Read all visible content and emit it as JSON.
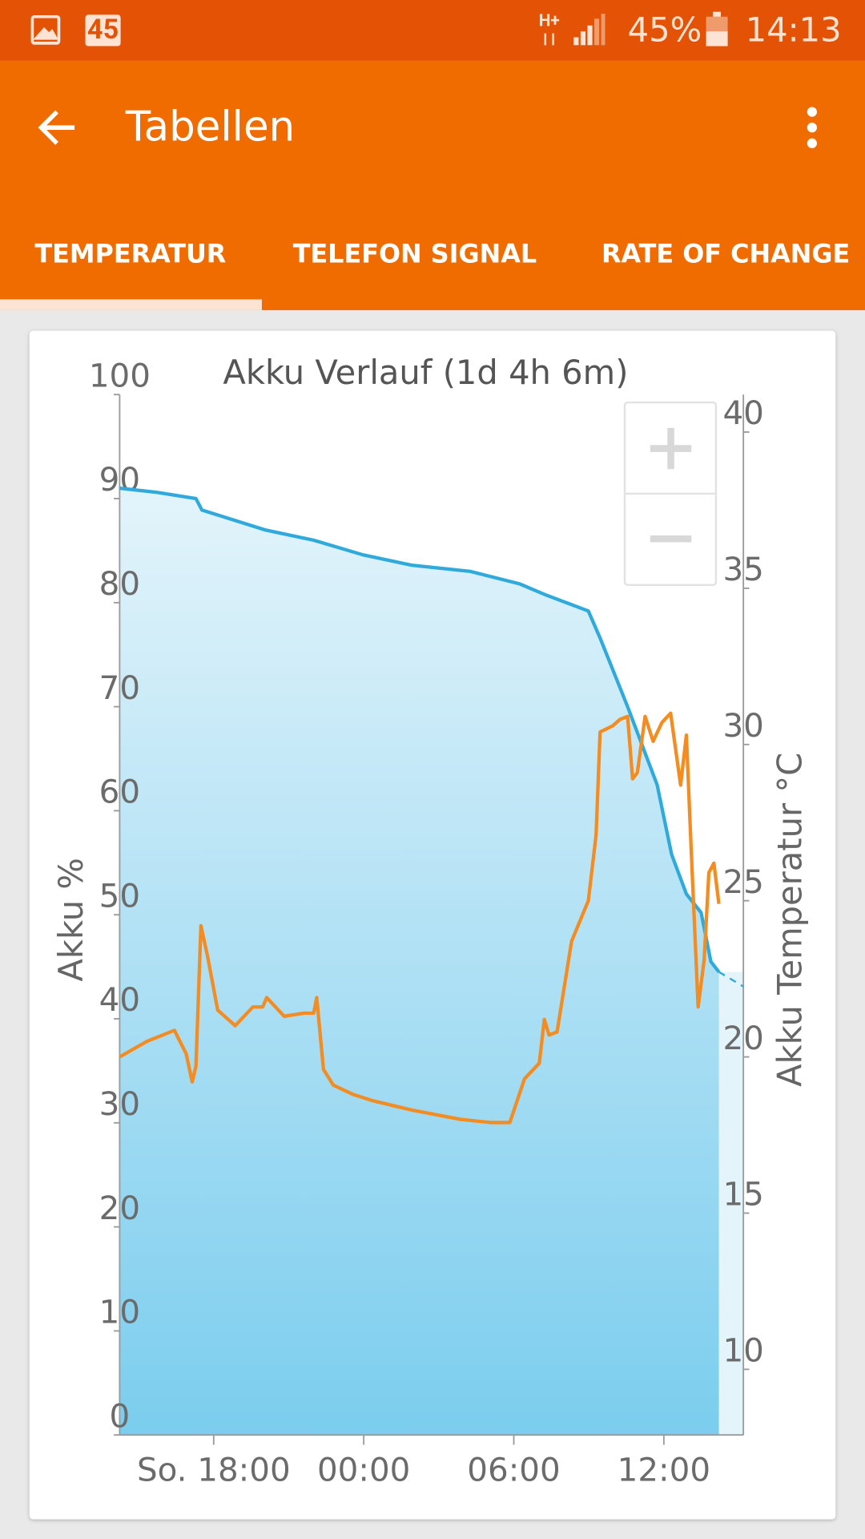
{
  "status_bar": {
    "badge": "45",
    "network": "H+",
    "battery": "45%",
    "time": "14:13"
  },
  "app_bar": {
    "title": "Tabellen"
  },
  "tabs": [
    "TEMPERATUR",
    "TELEFON SIGNAL",
    "RATE OF CHANGE"
  ],
  "chart_data": {
    "type": "line",
    "title": "Akku Verlauf (1d 4h 6m)",
    "y_label": "Akku %",
    "y2_label": "Akku Temperatur °C",
    "xlim": [
      14.24,
      39.18
    ],
    "xticks": [
      {
        "value": 18,
        "label": "So. 18:00"
      },
      {
        "value": 24,
        "label": "00:00"
      },
      {
        "value": 30,
        "label": "06:00"
      },
      {
        "value": 36,
        "label": "12:00"
      }
    ],
    "ylim": [
      0,
      100
    ],
    "yticks": [
      0,
      10,
      20,
      30,
      40,
      50,
      60,
      70,
      80,
      90,
      100
    ],
    "y2lim": [
      7.9,
      41.2
    ],
    "y2ticks": [
      10,
      15,
      20,
      25,
      30,
      35,
      40
    ],
    "series": [
      {
        "color": "#2eaadc",
        "fill": true,
        "x": [
          14.24,
          15.73,
          17.29,
          17.53,
          20.04,
          22.0,
          23.96,
          25.92,
          28.27,
          30.24,
          31.22,
          32.98,
          33.45,
          34.55,
          35.73,
          36.31,
          36.9,
          37.49,
          37.88,
          38.2
        ],
        "values": [
          91.0,
          90.6,
          90.0,
          88.9,
          87.0,
          86.0,
          84.6,
          83.6,
          83.0,
          81.8,
          80.8,
          79.2,
          76.6,
          70.0,
          62.5,
          55.8,
          52.0,
          50.2,
          45.5,
          44.5
        ]
      },
      {
        "color": "#2eaadc",
        "dashed": true,
        "x": [
          38.2,
          39.18
        ],
        "values": [
          44.5,
          43.1
        ]
      },
      {
        "color": "#f68b1f",
        "axis": "y2",
        "x": [
          14.24,
          15.33,
          16.43,
          16.9,
          17.14,
          17.29,
          17.49,
          17.76,
          18.16,
          18.86,
          19.57,
          19.96,
          20.12,
          20.82,
          21.6,
          22.0,
          22.12,
          22.39,
          22.78,
          23.57,
          24.35,
          25.92,
          27.88,
          29.06,
          29.84,
          30.43,
          31.02,
          31.22,
          31.41,
          31.73,
          32.31,
          32.98,
          33.29,
          33.45,
          33.96,
          34.24,
          34.55,
          34.75,
          34.94,
          35.25,
          35.57,
          35.92,
          36.27,
          36.67,
          36.9,
          37.1,
          37.37,
          37.61,
          37.8,
          38.0,
          38.2
        ],
        "values": [
          20.0,
          20.5,
          20.85,
          20.1,
          19.2,
          19.7,
          24.2,
          23.2,
          21.5,
          21.0,
          21.6,
          21.6,
          21.9,
          21.3,
          21.4,
          21.4,
          21.9,
          19.6,
          19.1,
          18.8,
          18.6,
          18.3,
          18.0,
          17.9,
          17.9,
          19.3,
          19.8,
          21.2,
          20.7,
          20.8,
          23.7,
          25.0,
          27.1,
          30.4,
          30.6,
          30.8,
          30.9,
          28.9,
          29.1,
          30.9,
          30.1,
          30.7,
          31.0,
          28.7,
          30.3,
          26.5,
          21.6,
          23.1,
          25.9,
          26.2,
          24.9
        ]
      }
    ]
  }
}
